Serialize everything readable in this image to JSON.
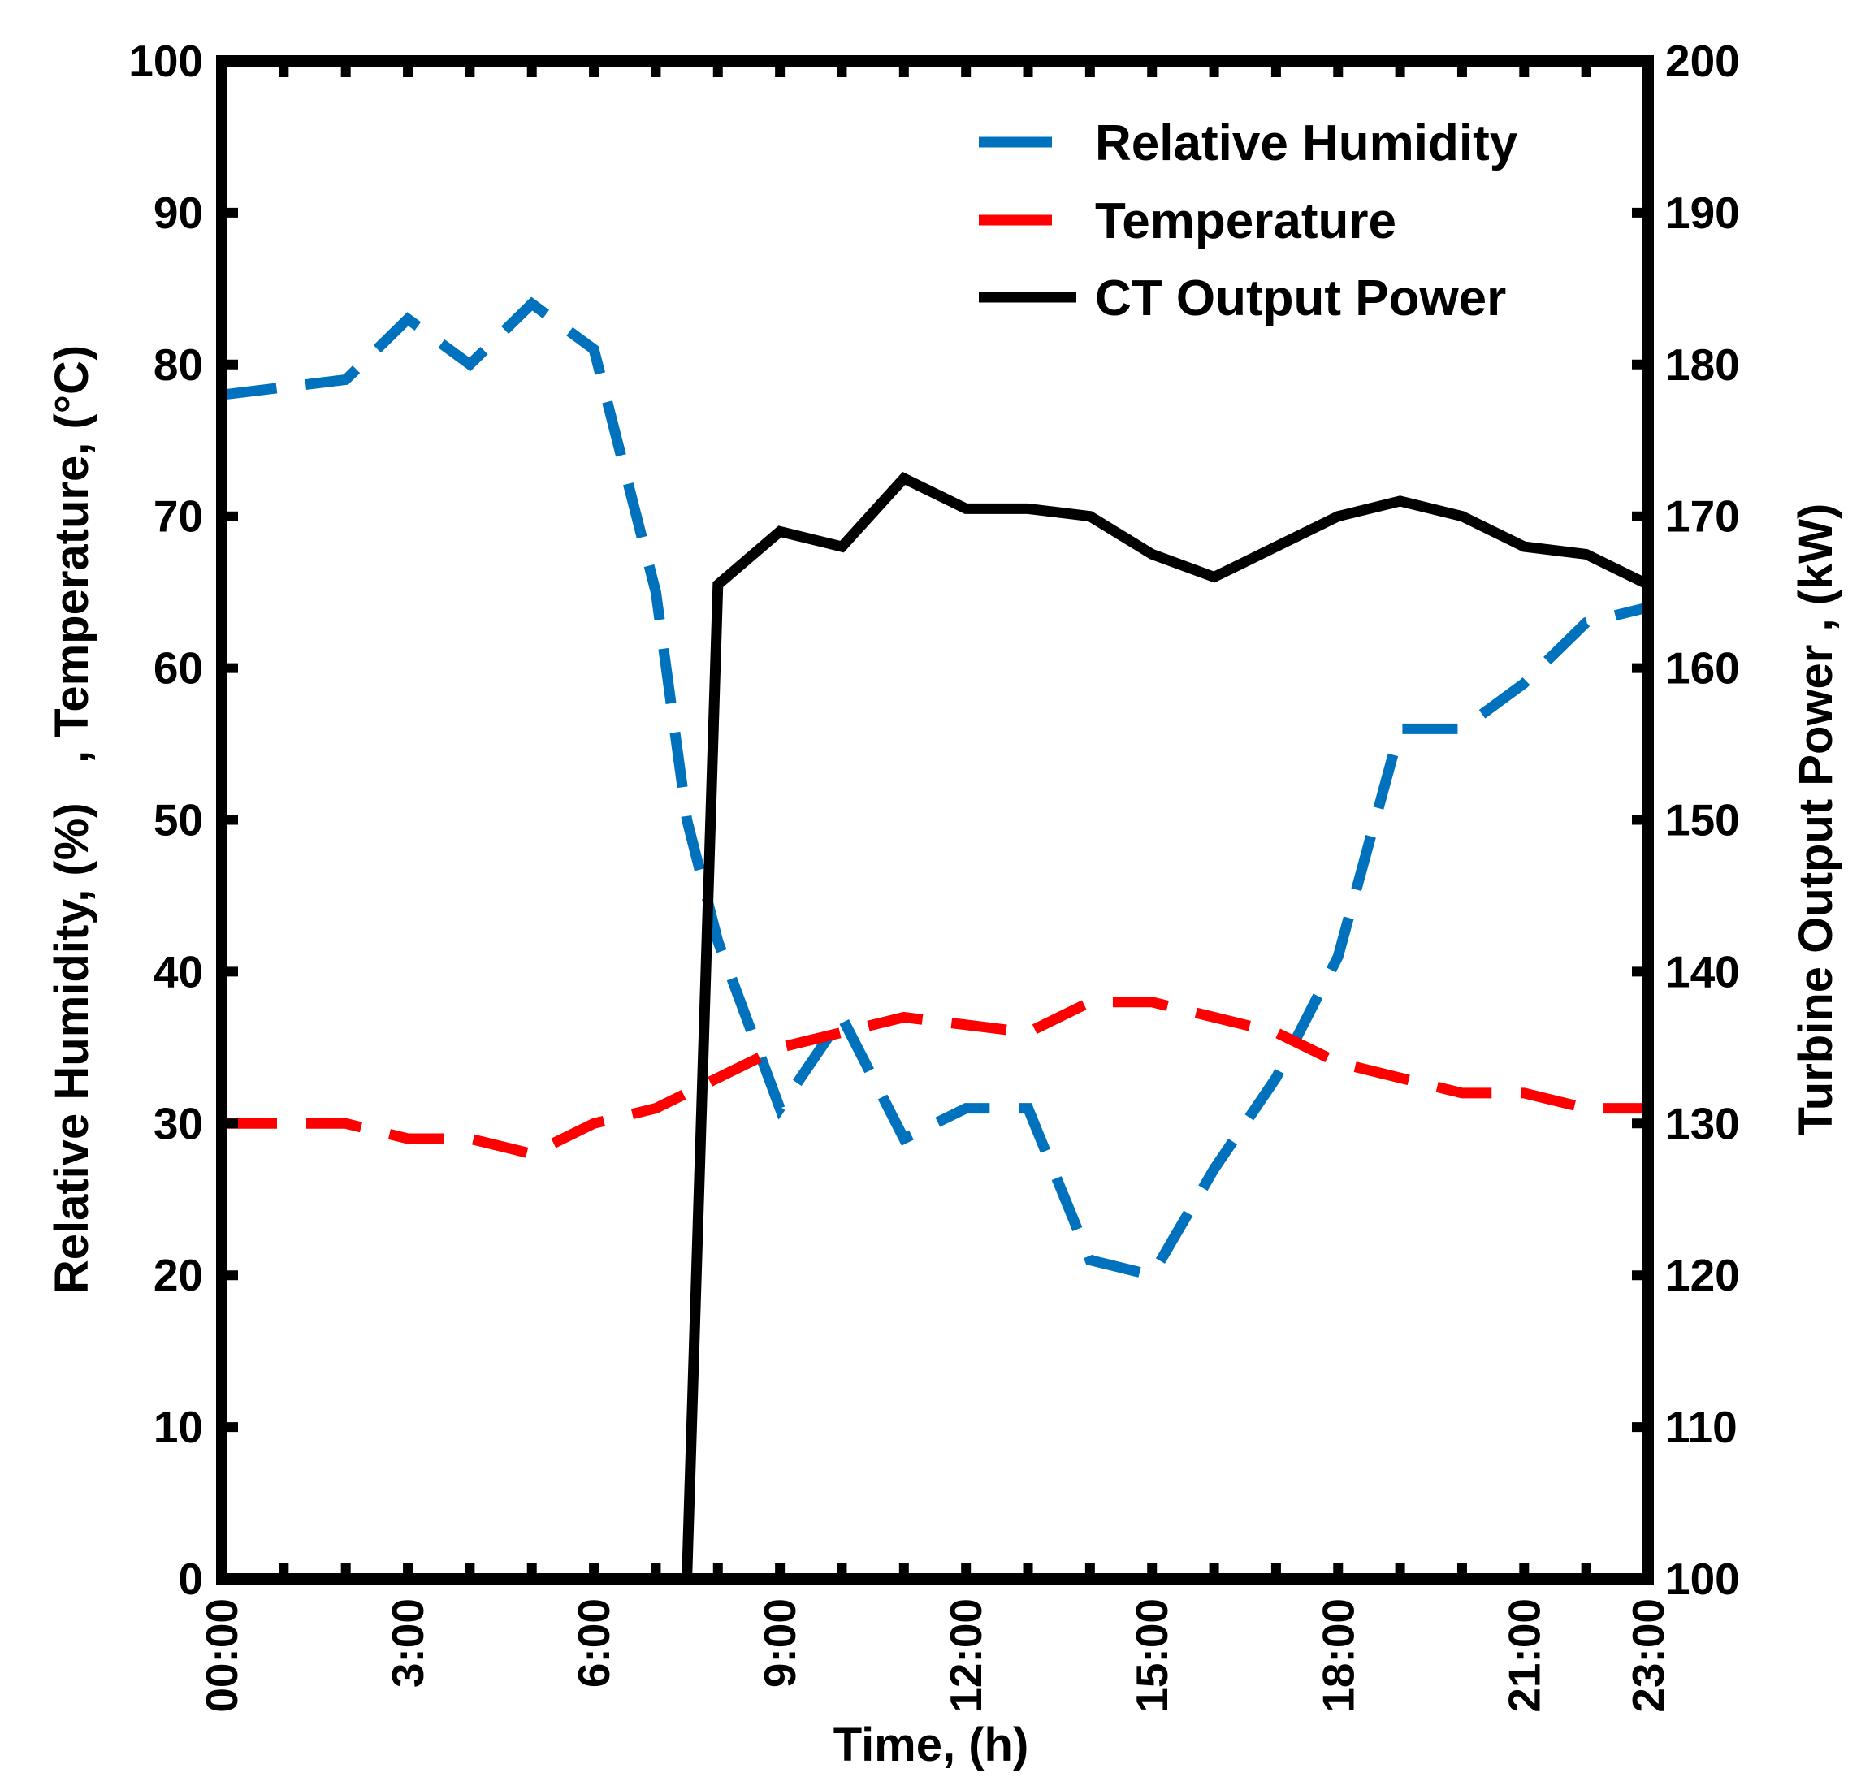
{
  "chart_data": {
    "type": "line",
    "title": "",
    "xlabel": "Time, (h)",
    "ylabel_left": "Relative Humidity, (%)   , Temperature, (°C)",
    "ylabel_right": "Turbine Output Power , (kW)",
    "xlim": [
      0,
      23
    ],
    "ylim_left": [
      0,
      100
    ],
    "ylim_right": [
      100,
      200
    ],
    "x_ticks": [
      0,
      3,
      6,
      9,
      12,
      15,
      18,
      21,
      23
    ],
    "x_tick_labels": [
      "00:00",
      "3:00",
      "6:00",
      "9:00",
      "12:00",
      "15:00",
      "18:00",
      "21:00",
      "23:00"
    ],
    "y_left_ticks": [
      0,
      10,
      20,
      30,
      40,
      50,
      60,
      70,
      80,
      90,
      100
    ],
    "y_left_tick_labels": [
      "0",
      "10",
      "20",
      "30",
      "40",
      "50",
      "60",
      "70",
      "80",
      "90",
      "100"
    ],
    "y_right_ticks": [
      100,
      110,
      120,
      130,
      140,
      150,
      160,
      170,
      180,
      190,
      200
    ],
    "y_right_tick_labels": [
      "100",
      "110",
      "120",
      "130",
      "140",
      "150",
      "160",
      "170",
      "180",
      "190",
      "200"
    ],
    "grid": false,
    "legend_position": "top-right",
    "series": [
      {
        "name": "Relative Humidity",
        "axis": "left",
        "style": "dashed",
        "color": "#0072BD",
        "x": [
          0,
          2,
          3,
          4,
          5,
          6,
          7,
          7.5,
          8,
          9,
          10,
          11,
          12,
          13,
          14,
          15,
          16,
          17,
          18,
          19,
          20,
          21,
          22,
          23
        ],
        "y": [
          78,
          79,
          83,
          80,
          84,
          81,
          65,
          50,
          42,
          31,
          37,
          29,
          31,
          31,
          21,
          20,
          27,
          33,
          41,
          56,
          56,
          59,
          63,
          64
        ]
      },
      {
        "name": "Temperature",
        "axis": "left",
        "style": "dashed",
        "color": "#FF0000",
        "x": [
          0,
          2,
          3,
          4,
          5,
          6,
          7,
          8,
          9,
          10,
          11,
          12,
          13,
          14,
          15,
          16,
          17,
          18,
          19,
          20,
          21,
          22,
          23
        ],
        "y": [
          30,
          30,
          29,
          29,
          28,
          30,
          31,
          33,
          35,
          36,
          37,
          36.5,
          36,
          38,
          38,
          37,
          36,
          34,
          33,
          32,
          32,
          31,
          31
        ]
      },
      {
        "name": "CT Output Power",
        "axis": "right",
        "style": "solid",
        "color": "#000000",
        "x": [
          7.5,
          8,
          9,
          10,
          11,
          12,
          13,
          14,
          15,
          16,
          17,
          18,
          19,
          20,
          21,
          22,
          23
        ],
        "y": [
          100,
          165.5,
          169,
          168,
          172.5,
          170.5,
          170.5,
          170,
          167.5,
          166,
          168,
          170,
          171,
          170,
          168,
          167.5,
          165.5
        ]
      }
    ]
  }
}
